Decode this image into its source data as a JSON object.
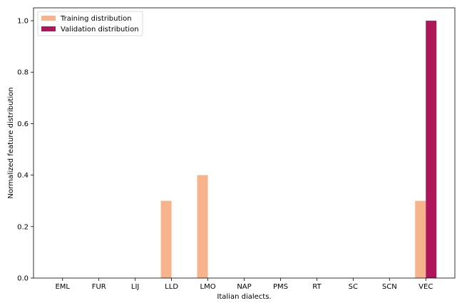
{
  "chart_data": {
    "type": "bar",
    "categories": [
      "EML",
      "FUR",
      "LIJ",
      "LLD",
      "LMO",
      "NAP",
      "PMS",
      "RT",
      "SC",
      "SCN",
      "VEC"
    ],
    "series": [
      {
        "name": "Training distribution",
        "color": "#f7b48c",
        "values": [
          0,
          0,
          0,
          0.3,
          0.4,
          0,
          0,
          0,
          0,
          0,
          0.3
        ]
      },
      {
        "name": "Validation distribution",
        "color": "#ad1759",
        "values": [
          0,
          0,
          0,
          0,
          0,
          0,
          0,
          0,
          0,
          0,
          1.0
        ]
      }
    ],
    "title": "",
    "xlabel": "Italian dialects.",
    "ylabel": "Normalized feature distribution",
    "ylim": [
      0,
      1.05
    ],
    "yticks": [
      0.0,
      0.2,
      0.4,
      0.6,
      0.8,
      1.0
    ],
    "ytick_labels": [
      "0.0",
      "0.2",
      "0.4",
      "0.6",
      "0.8",
      "1.0"
    ],
    "grid": false,
    "legend_position": "top-left"
  }
}
